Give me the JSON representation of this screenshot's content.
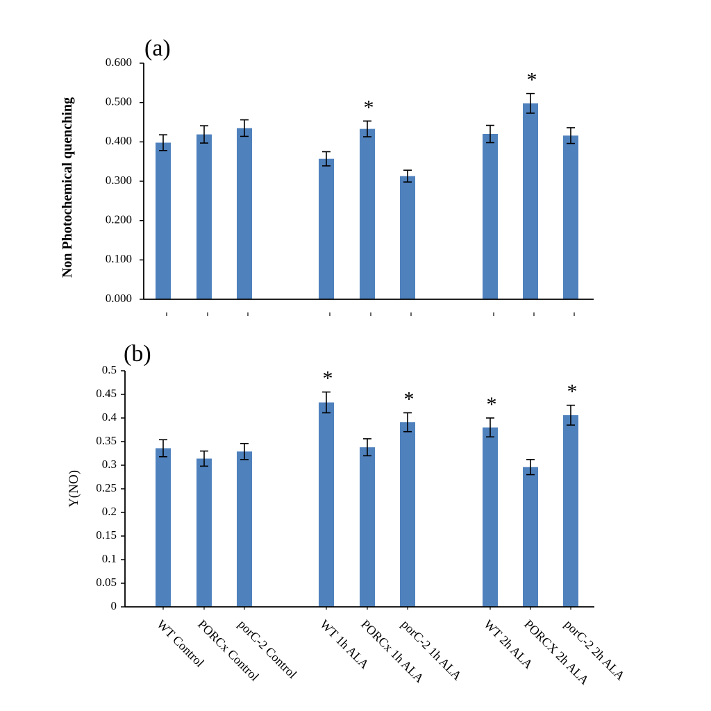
{
  "chart_data": [
    {
      "panel_label": "(a)",
      "type": "bar",
      "ylabel": "Non Photochemical quenching",
      "ylim": [
        0,
        0.6
      ],
      "yticks": [
        "0.000",
        "0.100",
        "0.200",
        "0.300",
        "0.400",
        "0.500",
        "0.600"
      ],
      "categories": [
        "WT Control",
        "PORCx Control",
        "porC-2 Control",
        "WT 1h ALA",
        "PORCx 1h ALA",
        "porC-2 1h ALA",
        "WT 2h ALA",
        "PORCX 2h ALA",
        "porC-2 2h ALA"
      ],
      "values": [
        0.398,
        0.419,
        0.435,
        0.357,
        0.433,
        0.313,
        0.42,
        0.498,
        0.416
      ],
      "errors": [
        0.02,
        0.022,
        0.021,
        0.018,
        0.02,
        0.015,
        0.022,
        0.025,
        0.02
      ],
      "significant": [
        "",
        "",
        "",
        "",
        "*",
        "",
        "",
        "*",
        ""
      ],
      "tick_labels_visible": false,
      "color": "#4f81bd"
    },
    {
      "panel_label": "(b)",
      "type": "bar",
      "ylabel": "Y(NO)",
      "ylim": [
        0,
        0.5
      ],
      "yticks": [
        "0",
        "0.05",
        "0.1",
        "0.15",
        "0.2",
        "0.25",
        "0.3",
        "0.35",
        "0.4",
        "0.45",
        "0.5"
      ],
      "categories": [
        "WT Control",
        "PORCx Control",
        "porC-2 Control",
        "WT 1h ALA",
        "PORCx 1h ALA",
        "porC-2 1h ALA",
        "WT 2h ALA",
        "PORCX 2h ALA",
        "porC-2 2h ALA"
      ],
      "values": [
        0.336,
        0.314,
        0.329,
        0.433,
        0.338,
        0.391,
        0.38,
        0.296,
        0.406
      ],
      "errors": [
        0.018,
        0.016,
        0.017,
        0.022,
        0.018,
        0.02,
        0.02,
        0.016,
        0.021
      ],
      "significant": [
        "",
        "",
        "",
        "*",
        "",
        "*",
        "*",
        "",
        "*"
      ],
      "tick_labels_visible": true,
      "color": "#4f81bd"
    }
  ]
}
